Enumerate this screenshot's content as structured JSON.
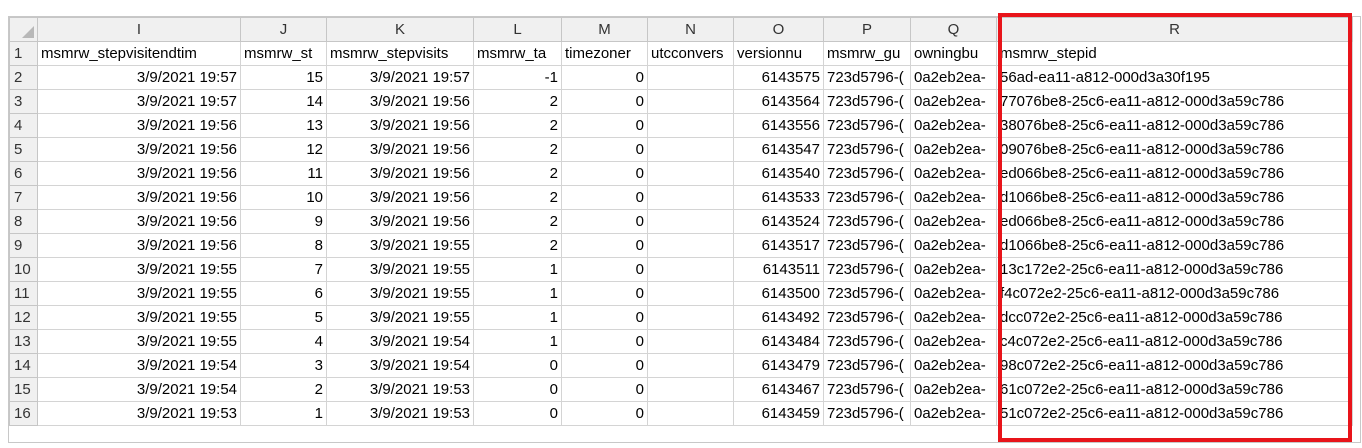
{
  "columns": [
    "I",
    "J",
    "K",
    "L",
    "M",
    "N",
    "O",
    "P",
    "Q",
    "R"
  ],
  "headers": [
    "msmrw_stepvisitendtim",
    "msmrw_st",
    "msmrw_stepvisits",
    "msmrw_ta",
    "timezoner",
    "utcconvers",
    "versionnu",
    "msmrw_gu",
    "owningbu",
    "msmrw_stepid"
  ],
  "rows": [
    {
      "n": "2",
      "I": "3/9/2021 19:57",
      "J": "15",
      "K": "3/9/2021 19:57",
      "L": "-1",
      "M": "0",
      "N": "",
      "O": "6143575",
      "P": "723d5796-(",
      "Q": "0a2eb2ea-",
      "R": "56ad-ea11-a812-000d3a30f195"
    },
    {
      "n": "3",
      "I": "3/9/2021 19:57",
      "J": "14",
      "K": "3/9/2021 19:56",
      "L": "2",
      "M": "0",
      "N": "",
      "O": "6143564",
      "P": "723d5796-(",
      "Q": "0a2eb2ea-",
      "R": "77076be8-25c6-ea11-a812-000d3a59c786"
    },
    {
      "n": "4",
      "I": "3/9/2021 19:56",
      "J": "13",
      "K": "3/9/2021 19:56",
      "L": "2",
      "M": "0",
      "N": "",
      "O": "6143556",
      "P": "723d5796-(",
      "Q": "0a2eb2ea-",
      "R": "38076be8-25c6-ea11-a812-000d3a59c786"
    },
    {
      "n": "5",
      "I": "3/9/2021 19:56",
      "J": "12",
      "K": "3/9/2021 19:56",
      "L": "2",
      "M": "0",
      "N": "",
      "O": "6143547",
      "P": "723d5796-(",
      "Q": "0a2eb2ea-",
      "R": "09076be8-25c6-ea11-a812-000d3a59c786"
    },
    {
      "n": "6",
      "I": "3/9/2021 19:56",
      "J": "11",
      "K": "3/9/2021 19:56",
      "L": "2",
      "M": "0",
      "N": "",
      "O": "6143540",
      "P": "723d5796-(",
      "Q": "0a2eb2ea-",
      "R": "ed066be8-25c6-ea11-a812-000d3a59c786"
    },
    {
      "n": "7",
      "I": "3/9/2021 19:56",
      "J": "10",
      "K": "3/9/2021 19:56",
      "L": "2",
      "M": "0",
      "N": "",
      "O": "6143533",
      "P": "723d5796-(",
      "Q": "0a2eb2ea-",
      "R": "d1066be8-25c6-ea11-a812-000d3a59c786"
    },
    {
      "n": "8",
      "I": "3/9/2021 19:56",
      "J": "9",
      "K": "3/9/2021 19:56",
      "L": "2",
      "M": "0",
      "N": "",
      "O": "6143524",
      "P": "723d5796-(",
      "Q": "0a2eb2ea-",
      "R": "ed066be8-25c6-ea11-a812-000d3a59c786"
    },
    {
      "n": "9",
      "I": "3/9/2021 19:56",
      "J": "8",
      "K": "3/9/2021 19:55",
      "L": "2",
      "M": "0",
      "N": "",
      "O": "6143517",
      "P": "723d5796-(",
      "Q": "0a2eb2ea-",
      "R": "d1066be8-25c6-ea11-a812-000d3a59c786"
    },
    {
      "n": "10",
      "I": "3/9/2021 19:55",
      "J": "7",
      "K": "3/9/2021 19:55",
      "L": "1",
      "M": "0",
      "N": "",
      "O": "6143511",
      "P": "723d5796-(",
      "Q": "0a2eb2ea-",
      "R": "13c172e2-25c6-ea11-a812-000d3a59c786"
    },
    {
      "n": "11",
      "I": "3/9/2021 19:55",
      "J": "6",
      "K": "3/9/2021 19:55",
      "L": "1",
      "M": "0",
      "N": "",
      "O": "6143500",
      "P": "723d5796-(",
      "Q": "0a2eb2ea-",
      "R": "f4c072e2-25c6-ea11-a812-000d3a59c786"
    },
    {
      "n": "12",
      "I": "3/9/2021 19:55",
      "J": "5",
      "K": "3/9/2021 19:55",
      "L": "1",
      "M": "0",
      "N": "",
      "O": "6143492",
      "P": "723d5796-(",
      "Q": "0a2eb2ea-",
      "R": "dcc072e2-25c6-ea11-a812-000d3a59c786"
    },
    {
      "n": "13",
      "I": "3/9/2021 19:55",
      "J": "4",
      "K": "3/9/2021 19:54",
      "L": "1",
      "M": "0",
      "N": "",
      "O": "6143484",
      "P": "723d5796-(",
      "Q": "0a2eb2ea-",
      "R": "c4c072e2-25c6-ea11-a812-000d3a59c786"
    },
    {
      "n": "14",
      "I": "3/9/2021 19:54",
      "J": "3",
      "K": "3/9/2021 19:54",
      "L": "0",
      "M": "0",
      "N": "",
      "O": "6143479",
      "P": "723d5796-(",
      "Q": "0a2eb2ea-",
      "R": "98c072e2-25c6-ea11-a812-000d3a59c786"
    },
    {
      "n": "15",
      "I": "3/9/2021 19:54",
      "J": "2",
      "K": "3/9/2021 19:53",
      "L": "0",
      "M": "0",
      "N": "",
      "O": "6143467",
      "P": "723d5796-(",
      "Q": "0a2eb2ea-",
      "R": "61c072e2-25c6-ea11-a812-000d3a59c786"
    },
    {
      "n": "16",
      "I": "3/9/2021 19:53",
      "J": "1",
      "K": "3/9/2021 19:53",
      "L": "0",
      "M": "0",
      "N": "",
      "O": "6143459",
      "P": "723d5796-(",
      "Q": "0a2eb2ea-",
      "R": "51c072e2-25c6-ea11-a812-000d3a59c786"
    }
  ],
  "header_row_number": "1",
  "highlight": {
    "column": "R",
    "color": "#e8141a"
  }
}
